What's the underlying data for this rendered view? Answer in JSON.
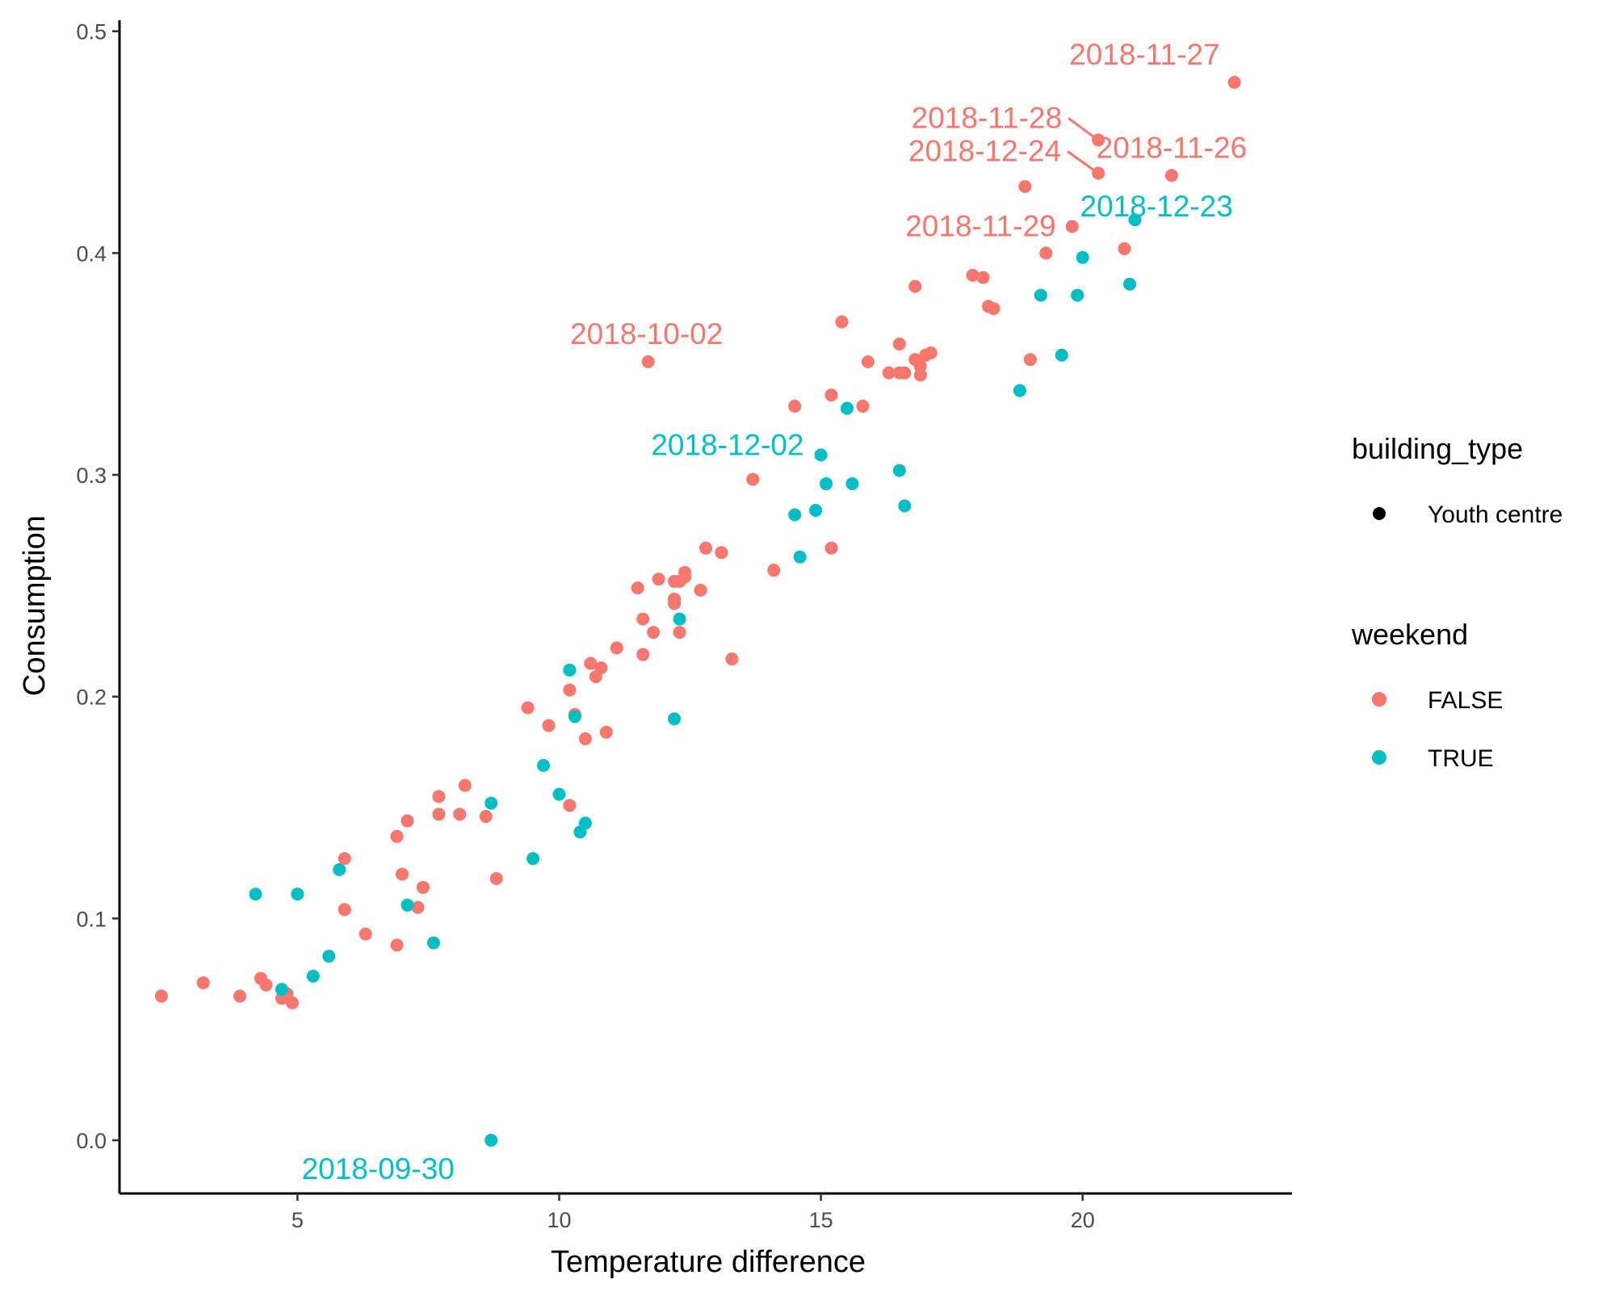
{
  "chart_data": {
    "type": "scatter",
    "title": "",
    "xlabel": "Temperature difference",
    "ylabel": "Consumption",
    "xlim": [
      1.6,
      24.0
    ],
    "ylim": [
      -0.024,
      0.505
    ],
    "x_ticks": [
      5,
      10,
      15,
      20
    ],
    "y_ticks": [
      0.0,
      0.1,
      0.2,
      0.3,
      0.4,
      0.5
    ],
    "x_tick_labels": [
      "5",
      "10",
      "15",
      "20"
    ],
    "y_tick_labels": [
      "0.0",
      "0.1",
      "0.2",
      "0.3",
      "0.4",
      "0.5"
    ],
    "grid": false,
    "legend_position": "right",
    "legends": [
      {
        "title": "building_type",
        "entries": [
          {
            "label": "Youth centre",
            "color": "#000000"
          }
        ]
      },
      {
        "title": "weekend",
        "entries": [
          {
            "label": "FALSE",
            "color": "#F8766D"
          },
          {
            "label": "TRUE",
            "color": "#00BFC4"
          }
        ]
      }
    ],
    "series": [
      {
        "name": "FALSE",
        "color": "#F8766D",
        "points": [
          [
            2.4,
            0.065
          ],
          [
            3.2,
            0.071
          ],
          [
            3.9,
            0.065
          ],
          [
            4.3,
            0.073
          ],
          [
            4.4,
            0.07
          ],
          [
            4.7,
            0.064
          ],
          [
            4.8,
            0.066
          ],
          [
            4.9,
            0.062
          ],
          [
            5.9,
            0.127
          ],
          [
            5.9,
            0.104
          ],
          [
            6.3,
            0.093
          ],
          [
            6.9,
            0.137
          ],
          [
            6.9,
            0.088
          ],
          [
            7.0,
            0.12
          ],
          [
            7.1,
            0.144
          ],
          [
            7.3,
            0.105
          ],
          [
            7.4,
            0.114
          ],
          [
            7.7,
            0.155
          ],
          [
            7.7,
            0.147
          ],
          [
            8.1,
            0.147
          ],
          [
            8.2,
            0.16
          ],
          [
            8.6,
            0.146
          ],
          [
            8.8,
            0.118
          ],
          [
            9.4,
            0.195
          ],
          [
            9.8,
            0.187
          ],
          [
            10.2,
            0.203
          ],
          [
            10.2,
            0.151
          ],
          [
            10.3,
            0.192
          ],
          [
            10.5,
            0.181
          ],
          [
            10.6,
            0.215
          ],
          [
            10.7,
            0.209
          ],
          [
            10.8,
            0.213
          ],
          [
            10.9,
            0.184
          ],
          [
            11.1,
            0.222
          ],
          [
            11.5,
            0.249
          ],
          [
            11.6,
            0.235
          ],
          [
            11.6,
            0.219
          ],
          [
            11.8,
            0.229
          ],
          [
            11.9,
            0.253
          ],
          [
            12.2,
            0.252
          ],
          [
            12.2,
            0.244
          ],
          [
            12.2,
            0.242
          ],
          [
            12.3,
            0.252
          ],
          [
            12.4,
            0.254
          ],
          [
            12.4,
            0.256
          ],
          [
            12.3,
            0.229
          ],
          [
            12.7,
            0.248
          ],
          [
            12.8,
            0.267
          ],
          [
            13.1,
            0.265
          ],
          [
            13.3,
            0.217
          ],
          [
            11.7,
            0.351
          ],
          [
            13.7,
            0.298
          ],
          [
            14.1,
            0.257
          ],
          [
            14.5,
            0.331
          ],
          [
            15.2,
            0.267
          ],
          [
            15.2,
            0.336
          ],
          [
            15.4,
            0.369
          ],
          [
            15.8,
            0.331
          ],
          [
            15.9,
            0.351
          ],
          [
            16.3,
            0.346
          ],
          [
            16.5,
            0.359
          ],
          [
            16.5,
            0.346
          ],
          [
            16.6,
            0.346
          ],
          [
            16.8,
            0.352
          ],
          [
            16.8,
            0.385
          ],
          [
            16.9,
            0.349
          ],
          [
            16.9,
            0.345
          ],
          [
            17.0,
            0.354
          ],
          [
            17.1,
            0.355
          ],
          [
            17.9,
            0.39
          ],
          [
            18.1,
            0.389
          ],
          [
            18.2,
            0.376
          ],
          [
            18.3,
            0.375
          ],
          [
            19.0,
            0.352
          ],
          [
            18.9,
            0.43
          ],
          [
            19.3,
            0.4
          ],
          [
            19.8,
            0.412
          ],
          [
            20.3,
            0.451
          ],
          [
            20.3,
            0.436
          ],
          [
            20.8,
            0.402
          ],
          [
            21.7,
            0.435
          ],
          [
            22.9,
            0.477
          ]
        ]
      },
      {
        "name": "TRUE",
        "color": "#00BFC4",
        "points": [
          [
            4.2,
            0.111
          ],
          [
            4.7,
            0.068
          ],
          [
            5.0,
            0.111
          ],
          [
            5.3,
            0.074
          ],
          [
            5.6,
            0.083
          ],
          [
            5.8,
            0.122
          ],
          [
            7.1,
            0.106
          ],
          [
            7.6,
            0.089
          ],
          [
            8.7,
            0.152
          ],
          [
            8.7,
            0.0
          ],
          [
            9.5,
            0.127
          ],
          [
            9.7,
            0.169
          ],
          [
            10.0,
            0.156
          ],
          [
            10.2,
            0.212
          ],
          [
            10.3,
            0.191
          ],
          [
            10.4,
            0.139
          ],
          [
            10.5,
            0.143
          ],
          [
            12.2,
            0.19
          ],
          [
            12.3,
            0.235
          ],
          [
            14.5,
            0.282
          ],
          [
            14.6,
            0.263
          ],
          [
            14.9,
            0.284
          ],
          [
            15.0,
            0.309
          ],
          [
            15.1,
            0.296
          ],
          [
            15.5,
            0.33
          ],
          [
            15.6,
            0.296
          ],
          [
            16.5,
            0.302
          ],
          [
            16.6,
            0.286
          ],
          [
            18.8,
            0.338
          ],
          [
            19.2,
            0.381
          ],
          [
            19.6,
            0.354
          ],
          [
            19.9,
            0.381
          ],
          [
            20.0,
            0.398
          ],
          [
            20.9,
            0.386
          ],
          [
            21.0,
            0.415
          ]
        ]
      }
    ],
    "annotations": [
      {
        "text": "2018-11-27",
        "x": 22.9,
        "y": 0.477,
        "color": "#F8766D"
      },
      {
        "text": "2018-11-28",
        "x": 20.3,
        "y": 0.451,
        "color": "#F8766D"
      },
      {
        "text": "2018-11-26",
        "x": 21.7,
        "y": 0.435,
        "color": "#F8766D"
      },
      {
        "text": "2018-12-24",
        "x": 20.3,
        "y": 0.436,
        "color": "#F8766D"
      },
      {
        "text": "2018-11-29",
        "x": 19.8,
        "y": 0.412,
        "color": "#F8766D"
      },
      {
        "text": "2018-12-23",
        "x": 21.0,
        "y": 0.415,
        "color": "#00BFC4"
      },
      {
        "text": "2018-10-02",
        "x": 11.7,
        "y": 0.351,
        "color": "#F8766D"
      },
      {
        "text": "2018-12-02",
        "x": 15.0,
        "y": 0.309,
        "color": "#00BFC4"
      },
      {
        "text": "2018-09-30",
        "x": 8.7,
        "y": 0.0,
        "color": "#00BFC4"
      }
    ]
  }
}
